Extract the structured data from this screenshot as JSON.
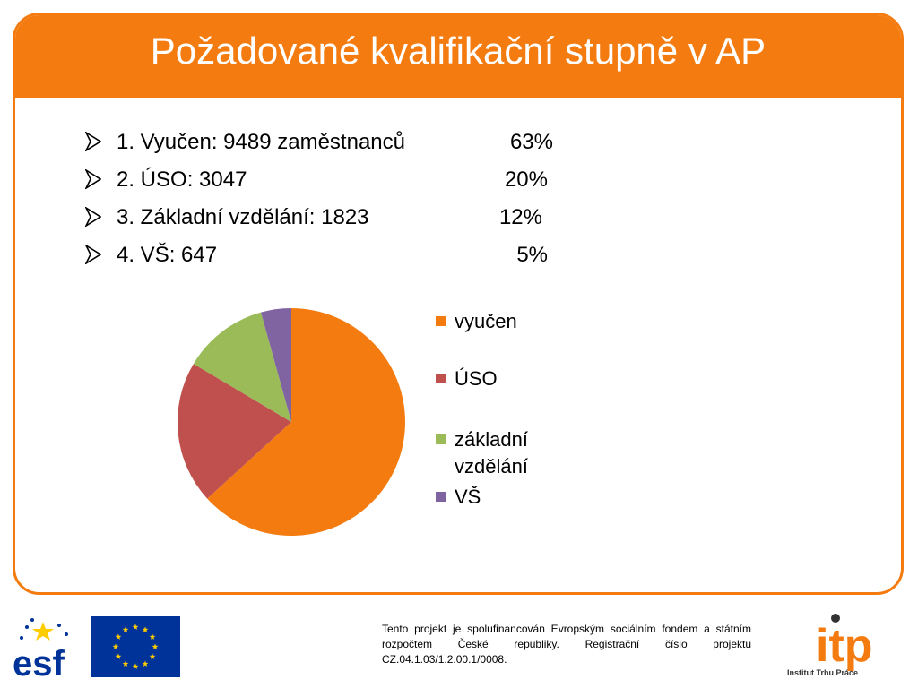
{
  "slide": {
    "title": "Požadované kvalifikační stupně v AP",
    "bullets": [
      {
        "text": "1. Vyučen: 9489 zaměstnanců",
        "pct": "63%"
      },
      {
        "text": "2. ÚSO: 3047",
        "pct": "20%"
      },
      {
        "text": "3. Základní vzdělání: 1823",
        "pct": "12%"
      },
      {
        "text": "4. VŠ: 647",
        "pct": "5%"
      }
    ]
  },
  "chart_data": {
    "type": "pie",
    "categories": [
      "vyučen",
      "ÚSO",
      "základní vzdělání",
      "VŠ"
    ],
    "legend_labels": [
      [
        "vyučen"
      ],
      [
        "ÚSO"
      ],
      [
        "základní",
        "vzdělání"
      ],
      [
        "VŠ"
      ]
    ],
    "values": [
      9489,
      3047,
      1823,
      647
    ],
    "percentages": [
      63,
      20,
      12,
      5
    ],
    "colors": [
      "#f47b0f",
      "#c0504d",
      "#9bbb59",
      "#8064a2"
    ],
    "start_angle_deg": 0,
    "direction": "clockwise",
    "legend_position": "right"
  },
  "footer": {
    "text": "Tento projekt je spolufinancován Evropským sociálním fondem a státním rozpočtem České republiky. Registrační číslo projektu CZ.04.1.03/1.2.00.1/0008.",
    "esf_text": "esf",
    "itp_text": "itp",
    "itp_caption": "Institut Trhu Práce"
  },
  "colors": {
    "accent": "#f47b0f",
    "eu_blue": "#003399",
    "eu_star": "#ffcc00"
  }
}
